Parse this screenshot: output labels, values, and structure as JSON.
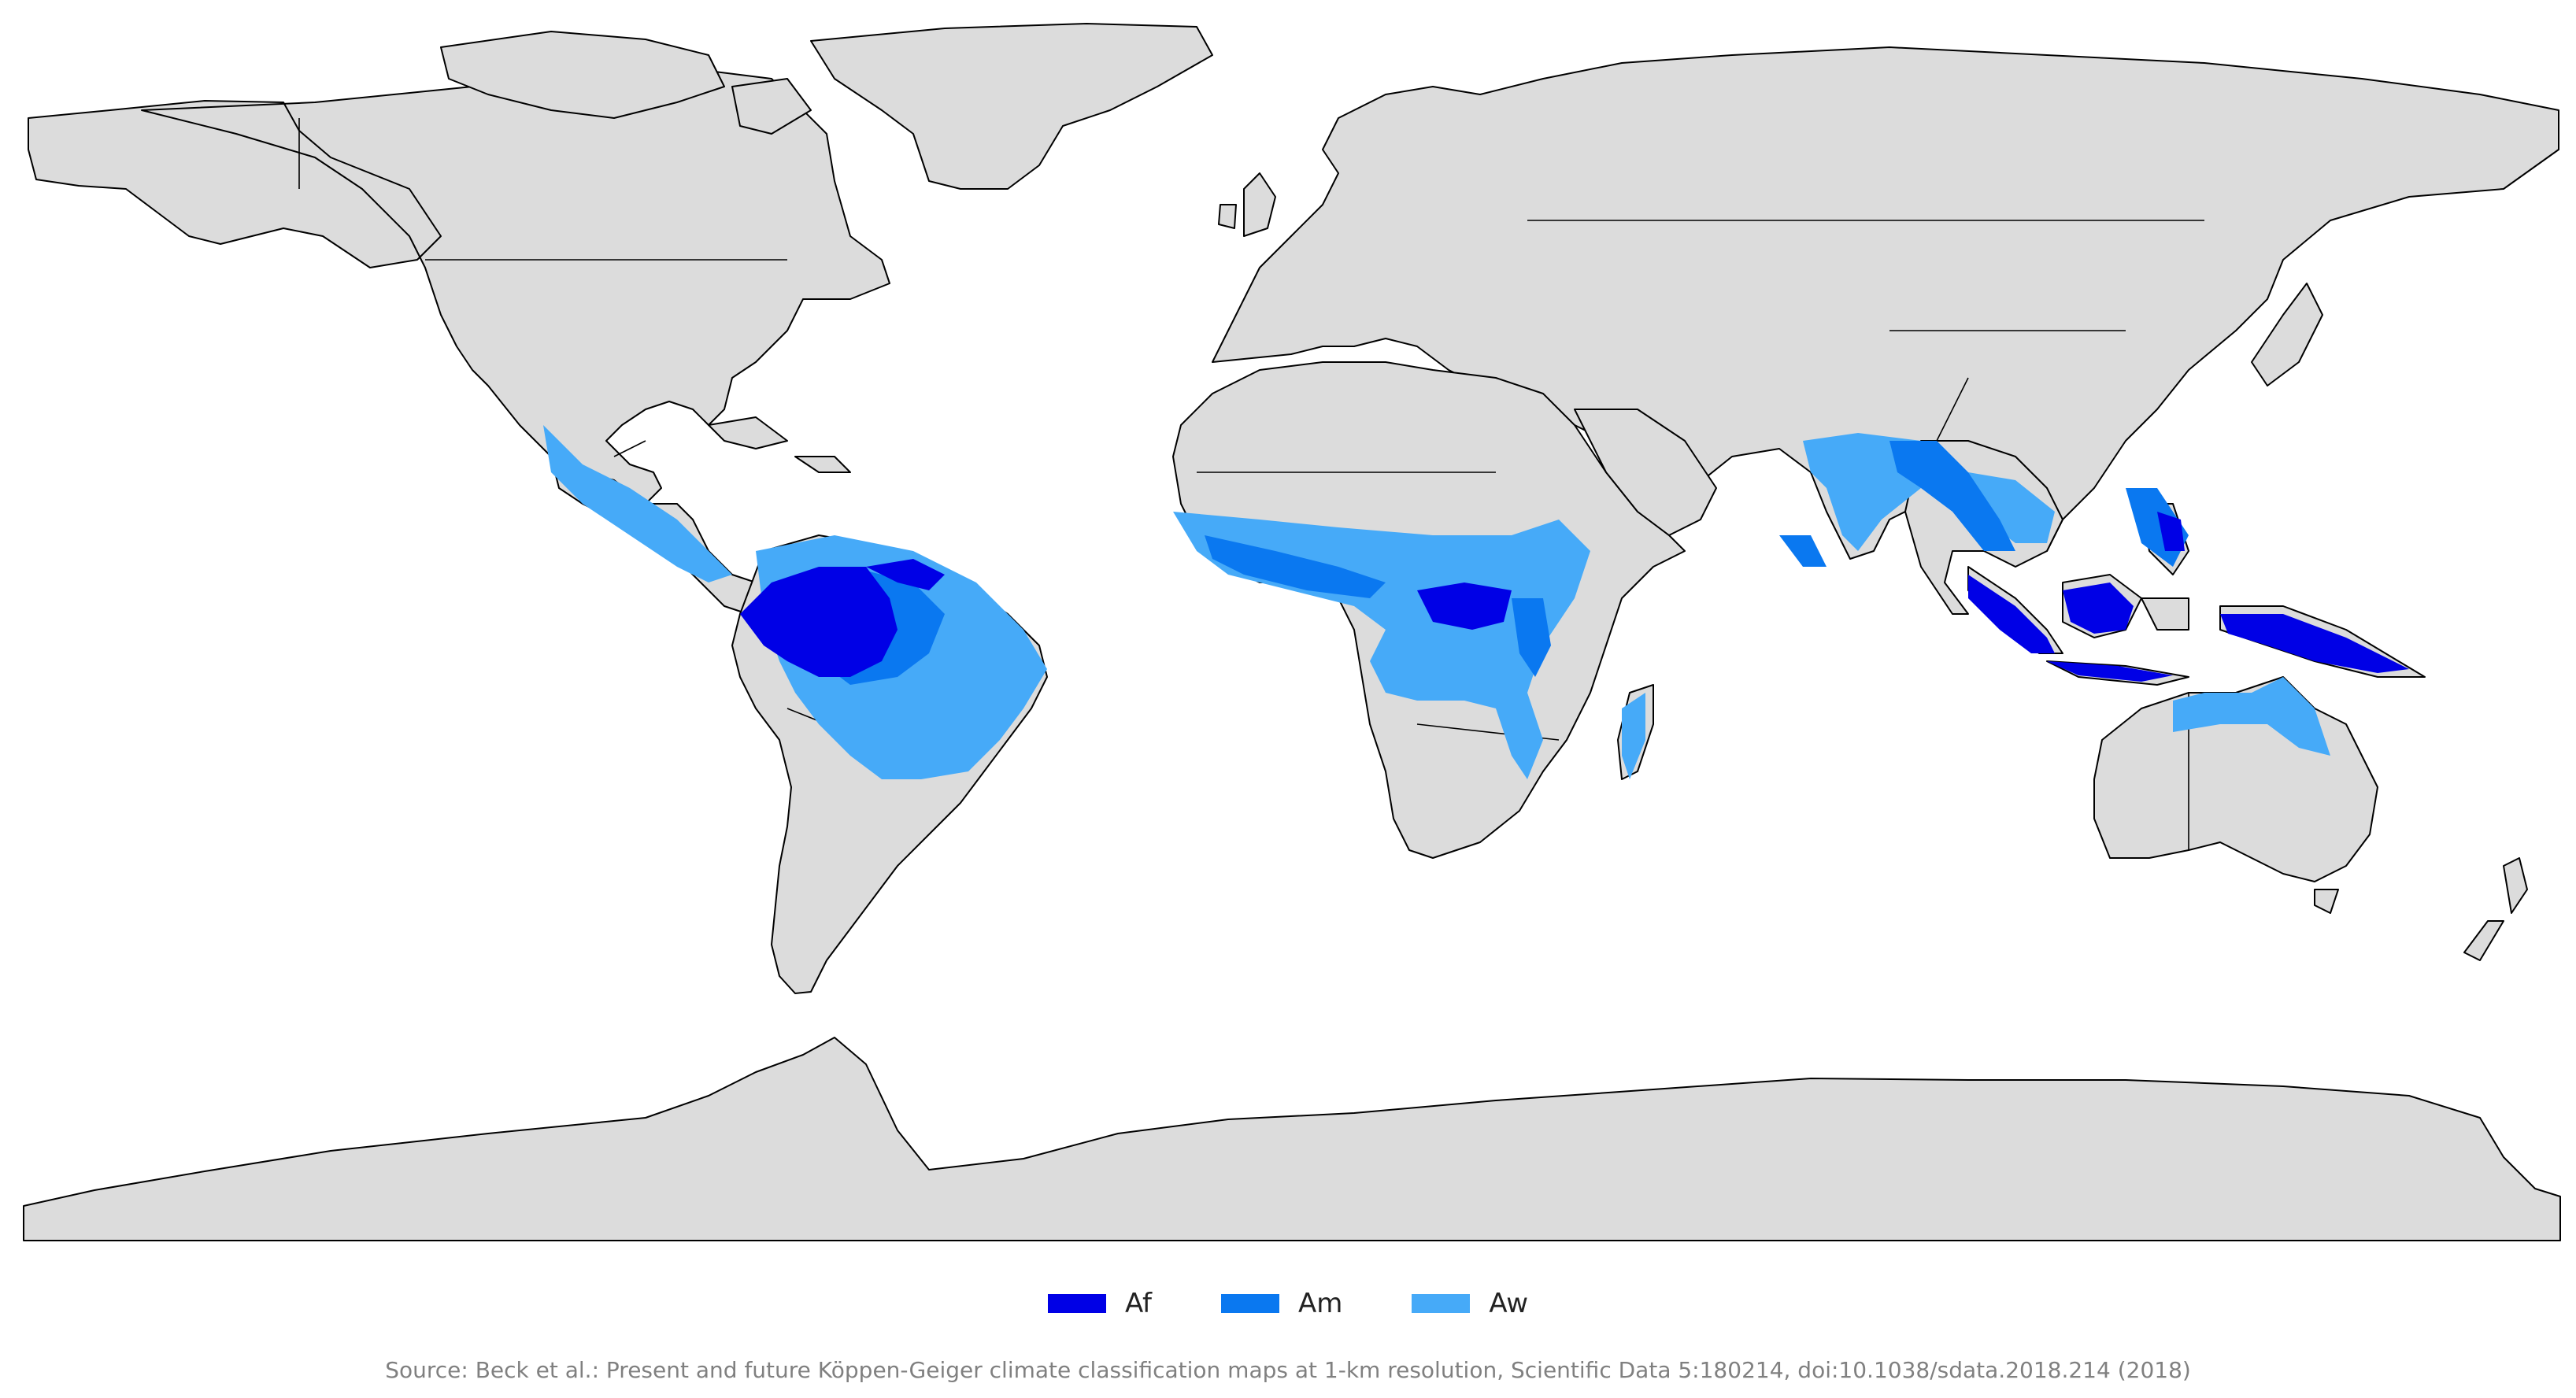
{
  "legend": {
    "items": [
      {
        "label": "Af",
        "color": "#0000e6"
      },
      {
        "label": "Am",
        "color": "#0a78f0"
      },
      {
        "label": "Aw",
        "color": "#46aaf8"
      }
    ]
  },
  "source": "Source: Beck et al.: Present and future Köppen-Geiger climate classification maps at 1-km resolution, Scientific Data 5:180214, doi:10.1038/sdata.2018.214 (2018)",
  "colors": {
    "land": "#dcdcdc",
    "ocean": "#ffffff",
    "coastline": "#000000"
  }
}
